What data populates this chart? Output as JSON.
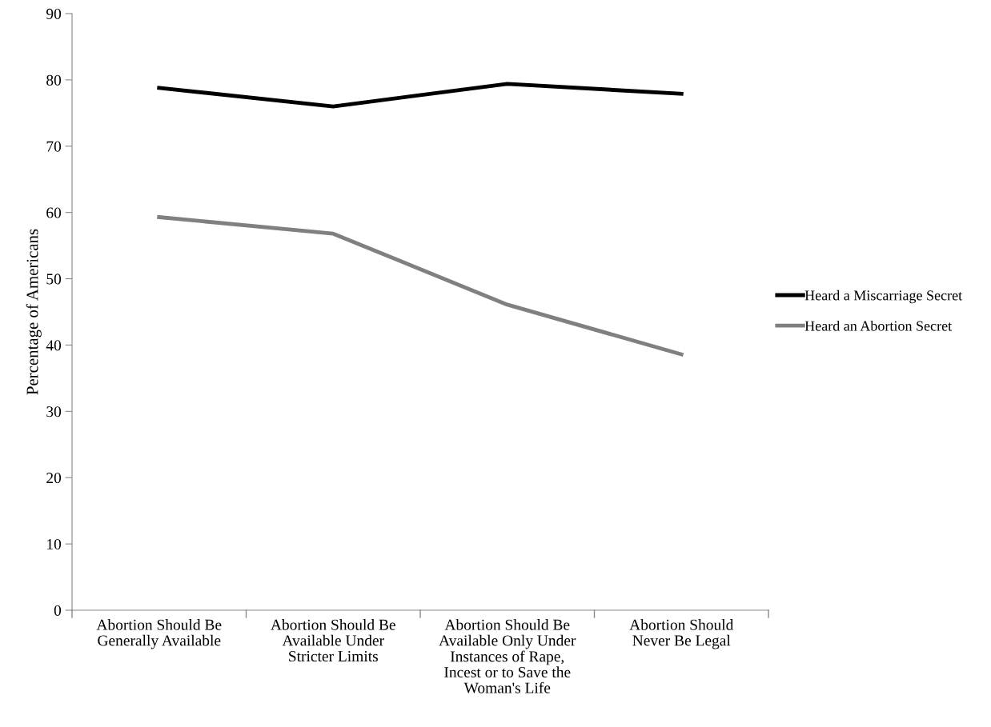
{
  "chart_data": {
    "type": "line",
    "ylabel": "Percentage of Americans",
    "categories": [
      "Abortion Should Be\nGenerally Available",
      "Abortion Should Be\nAvailable Under\nStricter Limits",
      "Abortion Should Be\nAvailable Only Under\nInstances of Rape,\nIncest or to Save the\nWoman's Life",
      "Abortion Should\nNever Be Legal"
    ],
    "series": [
      {
        "name": "Heard a Miscarriage Secret",
        "color": "#000000",
        "values": [
          78.8,
          76.0,
          79.4,
          77.9
        ]
      },
      {
        "name": "Heard an Abortion Secret",
        "color": "#808080",
        "values": [
          59.3,
          56.8,
          46.1,
          38.6
        ]
      }
    ],
    "ylim": [
      0,
      90
    ],
    "yticks": [
      0,
      10,
      20,
      30,
      40,
      50,
      60,
      70,
      80,
      90
    ],
    "grid": false,
    "legend": "right",
    "marker": "none",
    "line_style": "solid"
  }
}
